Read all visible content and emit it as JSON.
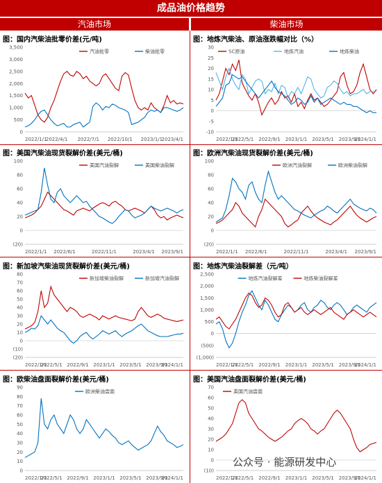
{
  "page_title": "成品油价格趋势",
  "sections": [
    "汽油市场",
    "柴油市场"
  ],
  "watermark": "公众号 · 能源研发中心",
  "colors": {
    "red": "#c00000",
    "blue": "#0070c0",
    "lightblue": "#4fb3e8"
  },
  "chart_data": [
    {
      "type": "line",
      "title": "图：国内汽柴油批零价差(元/吨)",
      "yticks": [
        "3,500",
        "3,000",
        "2,500",
        "2,000",
        "1,500",
        "1,000",
        "500",
        "0"
      ],
      "ylim": [
        0,
        3500
      ],
      "xticks": [
        "2022/1/1",
        "2022/4/1",
        "2022/7/1",
        "2022/10/1",
        "2023/1/1",
        "2023/4/1"
      ],
      "legend": "top-right",
      "series": [
        {
          "name": "汽油批零",
          "color": "#c00000",
          "values": [
            1600,
            1400,
            1500,
            1100,
            700,
            500,
            400,
            600,
            1000,
            1300,
            1700,
            2100,
            2400,
            2500,
            2350,
            2300,
            2500,
            2400,
            2200,
            2300,
            2100,
            2000,
            1900,
            2000,
            2300,
            2400,
            2200,
            2000,
            1800,
            1700,
            2300,
            2450,
            2350,
            1800,
            1300,
            1000,
            900,
            1000,
            900,
            1200,
            1000,
            900,
            800,
            1100,
            1500,
            1200,
            1300,
            1150,
            1200,
            1150
          ]
        },
        {
          "name": "柴油批零",
          "color": "#0070c0",
          "values": [
            200,
            250,
            350,
            500,
            700,
            850,
            900,
            700,
            500,
            350,
            250,
            300,
            350,
            200,
            200,
            300,
            350,
            400,
            200,
            300,
            400,
            1050,
            1200,
            1100,
            900,
            1050,
            1000,
            1150,
            1100,
            1000,
            950,
            900,
            800,
            300,
            350,
            400,
            500,
            600,
            800,
            900,
            850,
            900,
            800,
            1000,
            1000,
            950,
            900,
            850,
            900,
            1000
          ]
        }
      ]
    },
    {
      "type": "line",
      "title": "图：地炼汽柴油、原油涨跌幅对比（%）",
      "yticks": [
        "30",
        "25",
        "20",
        "15",
        "10",
        "5",
        "0",
        "-5",
        "-10"
      ],
      "ylim": [
        -10,
        30
      ],
      "xticks": [
        "2022/1/1",
        "2022/5/1",
        "2022/9/1",
        "2023/1/1",
        "2023/5/1",
        "2023/9/1",
        "2024/1/1"
      ],
      "legend": "top-right",
      "series": [
        {
          "name": "SC原油",
          "color": "#c00000",
          "values": [
            5,
            8,
            14,
            20,
            17,
            22,
            19,
            24,
            13,
            10,
            7,
            5,
            8,
            4,
            -2,
            1,
            4,
            6,
            3,
            5,
            9,
            6,
            7,
            4,
            8,
            2,
            4,
            1,
            5,
            8,
            5,
            6,
            4,
            2,
            3,
            5,
            7,
            9,
            16,
            18,
            12,
            8,
            9,
            12,
            18,
            22,
            16,
            10,
            8,
            10
          ]
        },
        {
          "name": "地炼汽油",
          "color": "#4fb3e8",
          "values": [
            18,
            14,
            10,
            16,
            20,
            15,
            12,
            10,
            17,
            15,
            8,
            11,
            14,
            15,
            14,
            8,
            10,
            9,
            13,
            8,
            12,
            11,
            6,
            9,
            8,
            11,
            8,
            12,
            16,
            15,
            10,
            8,
            6,
            7,
            11,
            12,
            14,
            13,
            10,
            8,
            9,
            7,
            8,
            8,
            9,
            10,
            8,
            9,
            9,
            9
          ]
        },
        {
          "name": "地炼柴油",
          "color": "#0070c0",
          "values": [
            2,
            4,
            6,
            12,
            13,
            17,
            16,
            15,
            16,
            14,
            12,
            10,
            8,
            6,
            8,
            10,
            12,
            14,
            11,
            9,
            8,
            7,
            5,
            3,
            4,
            6,
            5,
            3,
            4,
            7,
            4,
            6,
            3,
            4,
            5,
            6,
            5,
            4,
            3,
            4,
            3,
            3,
            2,
            2,
            1,
            0,
            -1,
            0,
            -1,
            -1
          ]
        }
      ]
    },
    {
      "type": "line",
      "title": "图：美国汽柴油现货裂解价差(美元/桶)",
      "yticks": [
        "100",
        "80",
        "60",
        "40",
        "20",
        "0",
        "(20)"
      ],
      "ylim": [
        -20,
        100
      ],
      "xticks": [
        "2022/1/1",
        "2022/6/1",
        "2022/11/1",
        "2023/4/1",
        "2023/9/1"
      ],
      "legend": "top-right",
      "series": [
        {
          "name": "美国汽油裂解",
          "color": "#c00000",
          "values": [
            18,
            20,
            22,
            25,
            30,
            35,
            45,
            55,
            50,
            45,
            40,
            35,
            30,
            28,
            25,
            22,
            28,
            30,
            32,
            30,
            28,
            32,
            35,
            38,
            40,
            38,
            35,
            40,
            42,
            38,
            35,
            30,
            28,
            30,
            32,
            30,
            28,
            25,
            30,
            35,
            30,
            22,
            18,
            20,
            15,
            18,
            20,
            22,
            20,
            18
          ]
        },
        {
          "name": "美国柴油裂解",
          "color": "#0070c0",
          "values": [
            22,
            24,
            26,
            28,
            30,
            55,
            90,
            65,
            45,
            40,
            55,
            60,
            50,
            45,
            40,
            45,
            50,
            45,
            40,
            42,
            35,
            30,
            25,
            20,
            18,
            15,
            12,
            10,
            14,
            20,
            25,
            30,
            28,
            22,
            18,
            20,
            22,
            25,
            30,
            35,
            32,
            30,
            28,
            30,
            32,
            30,
            28,
            25,
            28,
            30
          ]
        }
      ]
    },
    {
      "type": "line",
      "title": "图：欧洲汽柴油现货裂解价差(美元/桶)",
      "yticks": [
        "100",
        "80",
        "60",
        "40",
        "20",
        "0",
        "(20)"
      ],
      "ylim": [
        -20,
        100
      ],
      "xticks": [
        "2022/1/1",
        "2022/6/1",
        "2022/11/1",
        "2023/4/1",
        "2023/9/1"
      ],
      "legend": "top-right",
      "series": [
        {
          "name": "欧洲汽油裂解",
          "color": "#c00000",
          "values": [
            10,
            12,
            15,
            20,
            25,
            30,
            40,
            35,
            25,
            20,
            15,
            10,
            5,
            20,
            30,
            45,
            40,
            35,
            30,
            25,
            20,
            10,
            5,
            8,
            12,
            15,
            25,
            30,
            35,
            28,
            22,
            18,
            15,
            12,
            10,
            8,
            12,
            15,
            20,
            25,
            30,
            35,
            28,
            22,
            18,
            15,
            12,
            15,
            18,
            20
          ]
        },
        {
          "name": "欧洲柴油裂解",
          "color": "#0070c0",
          "values": [
            12,
            15,
            18,
            30,
            50,
            75,
            70,
            60,
            55,
            45,
            65,
            70,
            55,
            45,
            40,
            65,
            85,
            70,
            55,
            45,
            50,
            45,
            40,
            35,
            30,
            28,
            25,
            22,
            20,
            18,
            22,
            25,
            28,
            30,
            35,
            32,
            28,
            25,
            30,
            35,
            40,
            45,
            38,
            35,
            32,
            30,
            28,
            32,
            30,
            25
          ]
        }
      ]
    },
    {
      "type": "line",
      "title": "图：新加坡汽柴油现货裂解价差(美元/桶)",
      "yticks": [
        "80",
        "70",
        "60",
        "50",
        "40",
        "30",
        "20",
        "10",
        "0",
        "(10)",
        "(20)"
      ],
      "ylim": [
        -20,
        80
      ],
      "xticks": [
        "2022/1/1",
        "2022/5/1",
        "2022/9/1",
        "2023/1/1",
        "2023/5/1",
        "2023/9/1",
        "2024/1/1"
      ],
      "legend": "top-right",
      "series": [
        {
          "name": "新加坡柴油裂解",
          "color": "#c00000",
          "values": [
            14,
            16,
            18,
            22,
            35,
            60,
            40,
            45,
            65,
            55,
            50,
            45,
            40,
            35,
            40,
            38,
            35,
            30,
            28,
            30,
            32,
            30,
            28,
            25,
            30,
            28,
            26,
            28,
            30,
            28,
            27,
            26,
            25,
            24,
            26,
            35,
            40,
            35,
            30,
            28,
            30,
            32,
            30,
            27,
            26,
            25,
            24,
            23,
            24,
            25
          ]
        },
        {
          "name": "新加坡汽油裂解",
          "color": "#0070c0",
          "values": [
            10,
            12,
            15,
            14,
            18,
            30,
            25,
            20,
            25,
            20,
            15,
            12,
            10,
            5,
            0,
            -3,
            0,
            5,
            8,
            10,
            5,
            2,
            5,
            8,
            12,
            10,
            8,
            10,
            12,
            8,
            5,
            8,
            10,
            12,
            15,
            18,
            20,
            16,
            12,
            10,
            8,
            6,
            5,
            5,
            5,
            6,
            7,
            8,
            8,
            9
          ]
        }
      ]
    },
    {
      "type": "line",
      "title": "图：地炼汽柴油裂解差（元/吨）",
      "yticks": [
        "2,500",
        "2,000",
        "1,500",
        "1,000",
        "500",
        "0",
        "(500)",
        "(1,000)"
      ],
      "ylim": [
        -1000,
        2500
      ],
      "xticks": [
        "2022/1/1",
        "2022/5/1",
        "2022/9/1",
        "2023/1/1",
        "2023/5/1",
        "2023/9/1",
        "2024/1/1"
      ],
      "legend": "top-center",
      "series": [
        {
          "name": "地炼汽油裂解差",
          "color": "#0070c0",
          "values": [
            400,
            500,
            200,
            -300,
            -600,
            -400,
            0,
            500,
            900,
            1200,
            1600,
            1800,
            1500,
            1200,
            1000,
            1400,
            1200,
            900,
            600,
            500,
            800,
            1000,
            1200,
            1100,
            900,
            1000,
            1200,
            1300,
            1000,
            900,
            1100,
            1200,
            1400,
            1300,
            1100,
            1000,
            1200,
            1300,
            1200,
            1000,
            800,
            900,
            1100,
            1200,
            1100,
            1000,
            900,
            1100,
            1200,
            1300
          ]
        },
        {
          "name": "地炼柴油裂解差",
          "color": "#c00000",
          "values": [
            600,
            700,
            500,
            300,
            200,
            400,
            600,
            900,
            1200,
            1500,
            1700,
            1600,
            1300,
            1100,
            1200,
            1500,
            1400,
            1200,
            900,
            700,
            800,
            1200,
            1300,
            1100,
            900,
            1000,
            1100,
            900,
            800,
            900,
            1000,
            900,
            800,
            900,
            1000,
            1100,
            900,
            800,
            700,
            600,
            800,
            900,
            1000,
            900,
            800,
            700,
            800,
            900,
            800,
            700
          ]
        }
      ]
    },
    {
      "type": "line",
      "title": "图：欧柴油盘面裂解价差(美元/桶)",
      "yticks": [
        "90",
        "80",
        "70",
        "60",
        "50",
        "40",
        "30",
        "20",
        "10",
        "0"
      ],
      "ylim": [
        0,
        90
      ],
      "xticks": [
        "2022/1/1",
        "2022/5/1",
        "2022/9/1",
        "2023/1/1",
        "2023/5/1",
        "2023/9/1",
        "2024/1/1"
      ],
      "legend": "top-center",
      "series": [
        {
          "name": "欧洲柴油盘面",
          "color": "#0070c0",
          "values": [
            14,
            16,
            18,
            20,
            30,
            78,
            50,
            45,
            55,
            60,
            50,
            45,
            40,
            50,
            60,
            55,
            45,
            40,
            45,
            55,
            50,
            45,
            40,
            35,
            40,
            45,
            42,
            38,
            35,
            30,
            28,
            30,
            32,
            28,
            25,
            22,
            24,
            26,
            28,
            32,
            40,
            48,
            42,
            38,
            32,
            30,
            28,
            25,
            26,
            28
          ]
        }
      ]
    },
    {
      "type": "line",
      "title": "图：美国汽油盘面裂解价差(美元/桶)",
      "yticks": [
        "70",
        "60",
        "50",
        "40",
        "30",
        "20",
        "10",
        "0",
        "(10)"
      ],
      "ylim": [
        -10,
        70
      ],
      "xticks": [
        "2022/1/1",
        "2022/5/1",
        "2022/9/1",
        "2023/1/1",
        "2023/5/1",
        "2023/9/1",
        "2024/1/1"
      ],
      "legend": "top-left",
      "series": [
        {
          "name": "美国汽油盘面",
          "color": "#c00000",
          "values": [
            18,
            20,
            22,
            25,
            30,
            35,
            45,
            55,
            58,
            55,
            45,
            40,
            35,
            30,
            28,
            25,
            22,
            20,
            18,
            20,
            22,
            25,
            28,
            30,
            35,
            38,
            40,
            38,
            35,
            30,
            28,
            25,
            28,
            30,
            35,
            40,
            45,
            48,
            45,
            40,
            35,
            30,
            20,
            12,
            8,
            10,
            12,
            15,
            16,
            17
          ]
        }
      ]
    }
  ]
}
